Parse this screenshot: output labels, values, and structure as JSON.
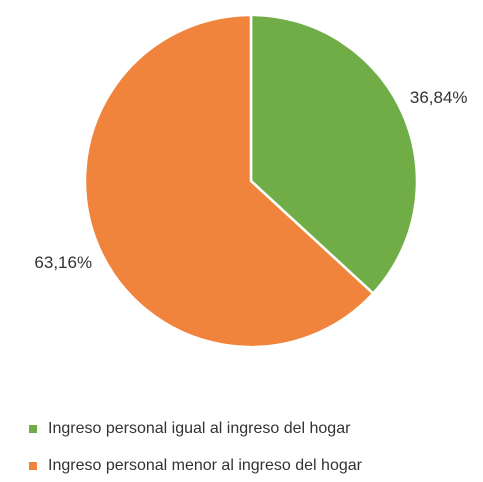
{
  "chart_data": {
    "type": "pie",
    "categories": [
      "Ingreso personal igual al ingreso del hogar",
      "Ingreso personal menor al ingreso del hogar"
    ],
    "values": [
      36.84,
      63.16
    ],
    "value_labels": [
      "36,84%",
      "63,16%"
    ],
    "colors": [
      "#70ad47",
      "#f0843c"
    ],
    "legend": "bottom"
  }
}
